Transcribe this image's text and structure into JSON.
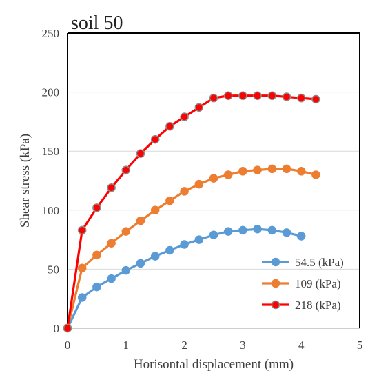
{
  "chart_data": {
    "type": "line",
    "title": "soil 50",
    "xlabel": "Horisontal displacement (mm)",
    "ylabel": "Shear stress (kPa)",
    "xlim": [
      0,
      5
    ],
    "ylim": [
      0,
      250
    ],
    "xticks": [
      "0",
      "1",
      "2",
      "3",
      "4",
      "5"
    ],
    "yticks": [
      "0",
      "50",
      "100",
      "150",
      "200",
      "250"
    ],
    "grid": "horizontal",
    "legend_position": "bottom-right",
    "series": [
      {
        "name": "54.5 (kPa)",
        "color": "#5b9bd5",
        "marker_edge": "#5b9bd5",
        "x": [
          0,
          0.25,
          0.5,
          0.75,
          1.0,
          1.25,
          1.5,
          1.75,
          2.0,
          2.25,
          2.5,
          2.75,
          3.0,
          3.25,
          3.5,
          3.75,
          4.0
        ],
        "y": [
          0,
          26,
          35,
          42,
          49,
          55,
          61,
          66,
          71,
          75,
          79,
          82,
          83,
          84,
          83,
          81,
          78
        ]
      },
      {
        "name": "109 (kPa)",
        "color": "#ed7d31",
        "marker_edge": "#ed7d31",
        "x": [
          0,
          0.25,
          0.5,
          0.75,
          1.0,
          1.25,
          1.5,
          1.75,
          2.0,
          2.25,
          2.5,
          2.75,
          3.0,
          3.25,
          3.5,
          3.75,
          4.0,
          4.25
        ],
        "y": [
          0,
          51,
          62,
          72,
          82,
          91,
          100,
          108,
          116,
          122,
          127,
          130,
          133,
          134,
          135,
          135,
          133,
          130
        ]
      },
      {
        "name": "218 (kPa)",
        "color": "#ff0000",
        "marker_edge": "#8b8b8b",
        "x": [
          0,
          0.25,
          0.5,
          0.75,
          1.0,
          1.25,
          1.5,
          1.75,
          2.0,
          2.25,
          2.5,
          2.75,
          3.0,
          3.25,
          3.5,
          3.75,
          4.0,
          4.25
        ],
        "y": [
          0,
          83,
          102,
          119,
          134,
          148,
          160,
          171,
          179,
          187,
          195,
          197,
          197,
          197,
          197,
          196,
          195,
          194
        ]
      }
    ]
  }
}
